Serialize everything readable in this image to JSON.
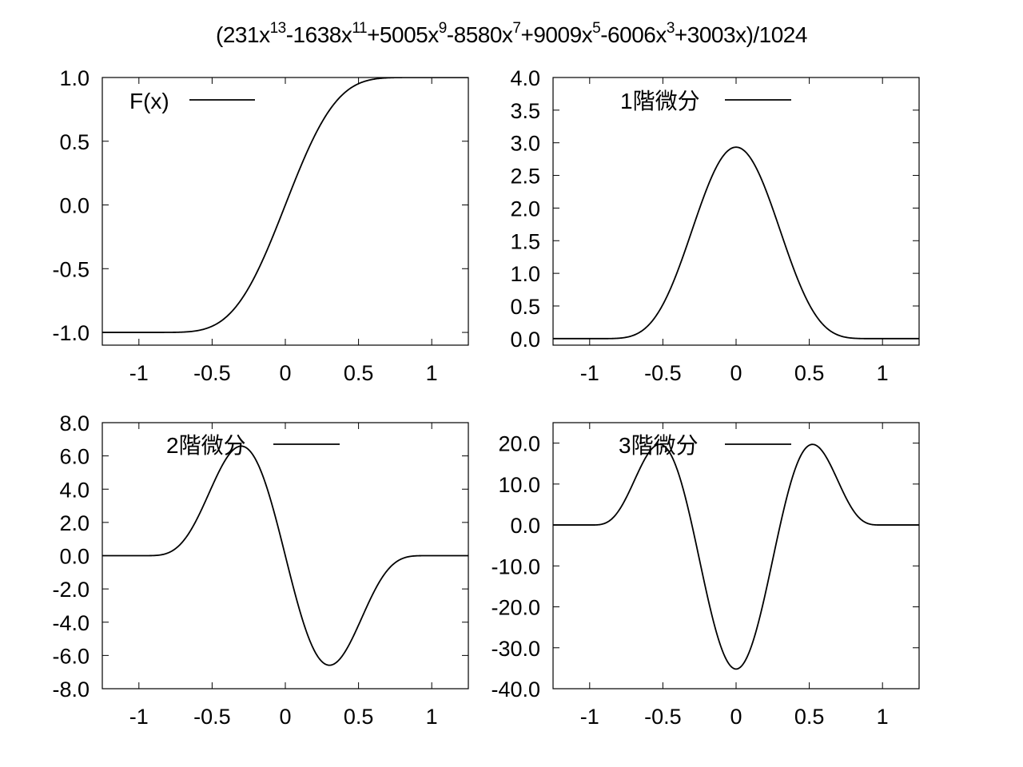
{
  "title": {
    "parts": [
      {
        "t": "(231x"
      },
      {
        "s": "13"
      },
      {
        "t": "-1638x"
      },
      {
        "s": "11"
      },
      {
        "t": "+5005x"
      },
      {
        "s": "9"
      },
      {
        "t": "-8580x"
      },
      {
        "s": "7"
      },
      {
        "t": "+9009x"
      },
      {
        "s": "5"
      },
      {
        "t": "-6006x"
      },
      {
        "s": "3"
      },
      {
        "t": "+3003x)/1024"
      }
    ]
  },
  "chart_data": [
    {
      "type": "line",
      "function": "F",
      "legend": "F(x)",
      "legend_position": "top-left",
      "xlim": [
        -1.25,
        1.25
      ],
      "ylim": [
        -1.1,
        1.0
      ],
      "x_ticks": [
        -1,
        -0.5,
        0,
        0.5,
        1
      ],
      "x_tick_labels": [
        "-1",
        "-0.5",
        "0",
        "0.5",
        "1"
      ],
      "y_ticks": [
        -1.0,
        -0.5,
        0.0,
        0.5,
        1.0
      ],
      "y_tick_labels": [
        "-1.0",
        "-0.5",
        "0.0",
        "0.5",
        "1.0"
      ],
      "grid": false,
      "points": [
        [
          -1.25,
          -1.0
        ],
        [
          -1.0,
          -1.0
        ],
        [
          -0.75,
          -0.98
        ],
        [
          -0.5,
          -0.75
        ],
        [
          -0.25,
          -0.37
        ],
        [
          0,
          0
        ],
        [
          0.25,
          0.37
        ],
        [
          0.5,
          0.75
        ],
        [
          0.75,
          0.98
        ],
        [
          1.0,
          1.0
        ],
        [
          1.25,
          1.0
        ]
      ]
    },
    {
      "type": "line",
      "function": "F1",
      "legend": "1階微分",
      "legend_position": "top-center",
      "xlim": [
        -1.25,
        1.25
      ],
      "ylim": [
        -0.1,
        4.0
      ],
      "x_ticks": [
        -1,
        -0.5,
        0,
        0.5,
        1
      ],
      "x_tick_labels": [
        "-1",
        "-0.5",
        "0",
        "0.5",
        "1"
      ],
      "y_ticks": [
        0.0,
        0.5,
        1.0,
        1.5,
        2.0,
        2.5,
        3.0,
        3.5,
        4.0
      ],
      "y_tick_labels": [
        "0.0",
        "0.5",
        "1.0",
        "1.5",
        "2.0",
        "2.5",
        "3.0",
        "3.5",
        "4.0"
      ],
      "grid": false,
      "points": [
        [
          -1.25,
          0.0
        ],
        [
          -1.0,
          0.0
        ],
        [
          -0.75,
          0.16
        ],
        [
          -0.5,
          1.2
        ],
        [
          -0.25,
          2.4
        ],
        [
          0,
          2.93
        ],
        [
          0.25,
          2.4
        ],
        [
          0.5,
          1.2
        ],
        [
          0.75,
          0.16
        ],
        [
          1.0,
          0.0
        ],
        [
          1.25,
          0.0
        ]
      ]
    },
    {
      "type": "line",
      "function": "F2",
      "legend": "2階微分",
      "legend_position": "top-left",
      "xlim": [
        -1.25,
        1.25
      ],
      "ylim": [
        -8.0,
        8.0
      ],
      "x_ticks": [
        -1,
        -0.5,
        0,
        0.5,
        1
      ],
      "x_tick_labels": [
        "-1",
        "-0.5",
        "0",
        "0.5",
        "1"
      ],
      "y_ticks": [
        -8.0,
        -6.0,
        -4.0,
        -2.0,
        0.0,
        2.0,
        4.0,
        6.0,
        8.0
      ],
      "y_tick_labels": [
        "-8.0",
        "-6.0",
        "-4.0",
        "-2.0",
        "0.0",
        "2.0",
        "4.0",
        "6.0",
        "8.0"
      ],
      "grid": false,
      "points": [
        [
          -1.25,
          0.0
        ],
        [
          -1.0,
          0.0
        ],
        [
          -0.75,
          1.2
        ],
        [
          -0.5,
          5.2
        ],
        [
          -0.29,
          6.55
        ],
        [
          0,
          0
        ],
        [
          0.29,
          -6.55
        ],
        [
          0.5,
          -5.2
        ],
        [
          0.75,
          -1.2
        ],
        [
          1.0,
          0.0
        ],
        [
          1.25,
          0.0
        ]
      ]
    },
    {
      "type": "line",
      "function": "F3",
      "legend": "3階微分",
      "legend_position": "top-center",
      "xlim": [
        -1.25,
        1.25
      ],
      "ylim": [
        -40.0,
        25.0
      ],
      "x_ticks": [
        -1,
        -0.5,
        0,
        0.5,
        1
      ],
      "x_tick_labels": [
        "-1",
        "-0.5",
        "0",
        "0.5",
        "1"
      ],
      "y_ticks": [
        -40.0,
        -30.0,
        -20.0,
        -10.0,
        0.0,
        10.0,
        20.0
      ],
      "y_tick_labels": [
        "-40.0",
        "-30.0",
        "-20.0",
        "-10.0",
        "0.0",
        "10.0",
        "20.0"
      ],
      "grid": false,
      "points": [
        [
          -1.25,
          0.0
        ],
        [
          -1.0,
          0.0
        ],
        [
          -0.75,
          6.9
        ],
        [
          -0.52,
          19.5
        ],
        [
          -0.25,
          -7.3
        ],
        [
          0,
          -35.2
        ],
        [
          0.25,
          -7.3
        ],
        [
          0.52,
          19.5
        ],
        [
          0.75,
          6.9
        ],
        [
          1.0,
          0.0
        ],
        [
          1.25,
          0.0
        ]
      ]
    }
  ]
}
